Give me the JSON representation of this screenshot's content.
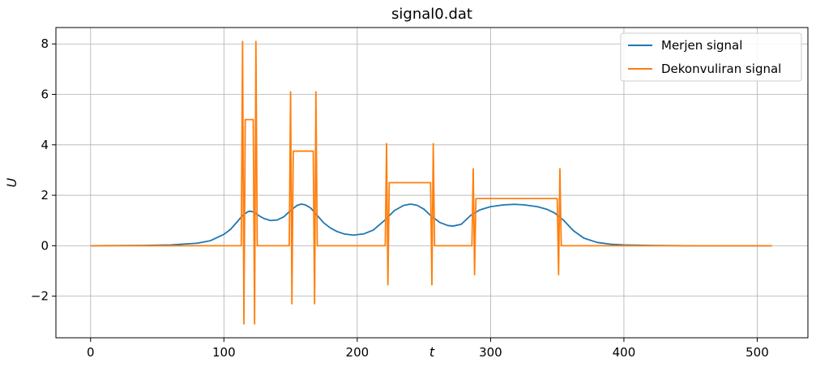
{
  "chart_data": {
    "type": "line",
    "title": "signal0.dat",
    "xlabel": "t",
    "ylabel": "U",
    "xlim": [
      -26,
      538
    ],
    "ylim": [
      -3.65,
      8.65
    ],
    "xticks": [
      0,
      100,
      200,
      300,
      400,
      500
    ],
    "xtick_labels": [
      "0",
      "100",
      "200",
      "300",
      "400",
      "500"
    ],
    "yticks": [
      -2,
      0,
      2,
      4,
      6,
      8
    ],
    "ytick_labels": [
      "−2",
      "0",
      "2",
      "4",
      "6",
      "8"
    ],
    "grid": true,
    "legend_position": "top-right",
    "series": [
      {
        "name": "Merjen signal",
        "color": "#1f77b4",
        "x": [
          0,
          40,
          60,
          80,
          90,
          100,
          105,
          110,
          114,
          118,
          120,
          123,
          126,
          130,
          135,
          140,
          145,
          150,
          155,
          158,
          161,
          165,
          170,
          175,
          180,
          185,
          190,
          197,
          205,
          212,
          220,
          228,
          235,
          240,
          245,
          250,
          255,
          262,
          268,
          272,
          278,
          285,
          292,
          300,
          310,
          318,
          325,
          335,
          342,
          348,
          355,
          362,
          370,
          380,
          390,
          400,
          420,
          450,
          480,
          511
        ],
        "y": [
          0.0,
          0.01,
          0.03,
          0.1,
          0.2,
          0.45,
          0.65,
          0.95,
          1.2,
          1.35,
          1.37,
          1.32,
          1.2,
          1.08,
          1.0,
          1.02,
          1.15,
          1.4,
          1.6,
          1.65,
          1.62,
          1.5,
          1.2,
          0.9,
          0.7,
          0.56,
          0.47,
          0.42,
          0.47,
          0.62,
          0.98,
          1.4,
          1.6,
          1.65,
          1.6,
          1.45,
          1.2,
          0.92,
          0.8,
          0.78,
          0.85,
          1.2,
          1.42,
          1.55,
          1.62,
          1.64,
          1.62,
          1.55,
          1.45,
          1.3,
          1.0,
          0.6,
          0.3,
          0.13,
          0.06,
          0.03,
          0.01,
          0.0,
          0.0,
          0.0
        ]
      },
      {
        "name": "Dekonvuliran signal",
        "color": "#ff7f0e",
        "x": [
          0,
          113,
          114,
          115,
          116,
          117,
          122,
          123,
          124,
          125,
          149,
          150,
          151,
          152,
          153,
          167,
          168,
          169,
          170,
          221,
          222,
          223,
          224,
          225,
          255,
          256,
          257,
          258,
          286,
          287,
          288,
          289,
          290,
          350,
          351,
          352,
          353,
          511
        ],
        "y": [
          0,
          0,
          8.1,
          -3.1,
          5.0,
          5.0,
          5.0,
          -3.1,
          8.1,
          0,
          0,
          6.1,
          -2.3,
          3.75,
          3.75,
          3.75,
          -2.3,
          6.1,
          0,
          0,
          4.05,
          -1.55,
          2.5,
          2.5,
          2.5,
          -1.55,
          4.05,
          0,
          0,
          3.05,
          -1.15,
          1.87,
          1.87,
          1.87,
          -1.15,
          3.05,
          0,
          0
        ]
      }
    ]
  }
}
